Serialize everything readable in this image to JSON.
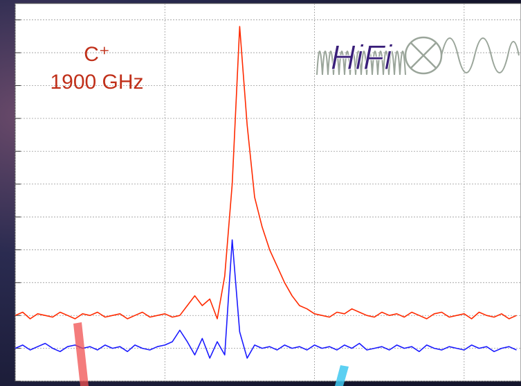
{
  "chart_data": {
    "type": "line",
    "annotations": [
      "C⁺",
      "1900 GHz"
    ],
    "logo": "HiFi",
    "x": [
      0,
      0.05,
      0.1,
      0.15,
      0.2,
      0.25,
      0.3,
      0.35,
      0.4,
      0.45,
      0.5,
      0.55,
      0.6,
      0.65,
      0.7,
      0.75,
      0.8,
      0.85,
      0.9,
      0.95,
      1,
      1.05,
      1.1,
      1.15,
      1.2,
      1.25,
      1.3,
      1.35,
      1.4,
      1.45,
      1.5,
      1.55,
      1.6,
      1.65,
      1.7,
      1.75,
      1.8,
      1.85,
      1.9,
      1.95,
      2,
      2.05,
      2.1,
      2.15,
      2.2,
      2.25,
      2.3,
      2.35,
      2.4,
      2.45,
      2.5,
      2.55,
      2.6,
      2.65,
      2.7,
      2.75,
      2.8,
      2.85,
      2.9,
      2.95,
      3,
      3.05,
      3.1,
      3.15,
      3.2,
      3.25,
      3.3,
      3.35
    ],
    "xlim": [
      0,
      3.38
    ],
    "xticks": [
      0,
      1,
      2,
      3
    ],
    "ylim": [
      0,
      11.5
    ],
    "yticks": [
      0,
      1,
      2,
      3,
      4,
      5,
      6,
      7,
      8,
      9,
      10,
      11
    ],
    "grid": true,
    "series": [
      {
        "color": "#ff2a00",
        "values": [
          2.0,
          2.1,
          1.9,
          2.05,
          2.0,
          1.95,
          2.1,
          2.0,
          1.9,
          2.05,
          2.0,
          2.1,
          1.95,
          2.0,
          2.05,
          1.9,
          2.0,
          2.1,
          1.95,
          2.0,
          2.05,
          1.95,
          2.0,
          2.3,
          2.6,
          2.3,
          2.5,
          1.9,
          3.2,
          6.0,
          10.8,
          7.8,
          5.6,
          4.7,
          4.0,
          3.5,
          3.0,
          2.6,
          2.3,
          2.2,
          2.05,
          2.0,
          1.95,
          2.1,
          2.05,
          2.2,
          2.1,
          2.0,
          1.95,
          2.1,
          2.0,
          2.05,
          1.95,
          2.1,
          2.0,
          1.9,
          2.05,
          2.1,
          1.95,
          2.0,
          2.05,
          1.9,
          2.1,
          2.0,
          1.95,
          2.05,
          1.9,
          2.0
        ]
      },
      {
        "color": "#1a1aff",
        "values": [
          1.0,
          1.1,
          0.95,
          1.05,
          1.15,
          1.0,
          0.9,
          1.05,
          1.1,
          1.0,
          1.05,
          0.95,
          1.1,
          1.0,
          1.05,
          0.9,
          1.1,
          1.0,
          0.95,
          1.05,
          1.1,
          1.2,
          1.55,
          1.2,
          0.8,
          1.3,
          0.7,
          1.2,
          0.8,
          4.3,
          1.5,
          0.7,
          1.1,
          1.0,
          1.05,
          0.95,
          1.1,
          1.0,
          1.05,
          0.95,
          1.1,
          1.0,
          1.05,
          0.95,
          1.1,
          1.0,
          1.15,
          0.95,
          1.0,
          1.05,
          0.95,
          1.1,
          1.0,
          1.05,
          0.9,
          1.1,
          1.0,
          0.95,
          1.05,
          1.0,
          0.95,
          1.1,
          1.0,
          1.05,
          0.9,
          1.0,
          1.05,
          0.95
        ]
      }
    ]
  }
}
